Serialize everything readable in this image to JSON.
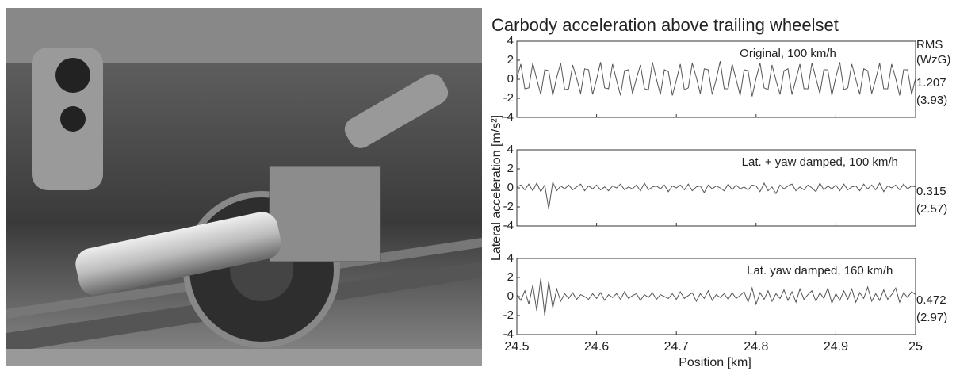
{
  "chart_data": {
    "type": "line",
    "title": "Carbody acceleration above trailing wheelset",
    "x_label": "Position [km]",
    "y_label": "Lateral acceleration [m/s²]",
    "rms_header": [
      "RMS",
      "(WzG)"
    ],
    "x": [
      24.5,
      24.505,
      24.51,
      24.515,
      24.52,
      24.525,
      24.53,
      24.535,
      24.54,
      24.545,
      24.55,
      24.555,
      24.56,
      24.565,
      24.57,
      24.575,
      24.58,
      24.585,
      24.59,
      24.595,
      24.6,
      24.605,
      24.61,
      24.615,
      24.62,
      24.625,
      24.63,
      24.635,
      24.64,
      24.645,
      24.65,
      24.655,
      24.66,
      24.665,
      24.67,
      24.675,
      24.68,
      24.685,
      24.69,
      24.695,
      24.7,
      24.705,
      24.71,
      24.715,
      24.72,
      24.725,
      24.73,
      24.735,
      24.74,
      24.745,
      24.75,
      24.755,
      24.76,
      24.765,
      24.77,
      24.775,
      24.78,
      24.785,
      24.79,
      24.795,
      24.8,
      24.805,
      24.81,
      24.815,
      24.82,
      24.825,
      24.83,
      24.835,
      24.84,
      24.845,
      24.85,
      24.855,
      24.86,
      24.865,
      24.87,
      24.875,
      24.88,
      24.885,
      24.89,
      24.895,
      24.9,
      24.905,
      24.91,
      24.915,
      24.92,
      24.925,
      24.93,
      24.935,
      24.94,
      24.945,
      24.95,
      24.955,
      24.96,
      24.965,
      24.97,
      24.975,
      24.98,
      24.985,
      24.99,
      24.995,
      25
    ],
    "xlim": [
      24.5,
      25
    ],
    "xticks": [
      24.5,
      24.6,
      24.7,
      24.8,
      24.9,
      25
    ],
    "ylim": [
      -4,
      4
    ],
    "yticks": [
      -4,
      -2,
      0,
      2,
      4
    ],
    "series": [
      {
        "name": "Original, 100 km/h",
        "color": "#555555",
        "rms_labels": [
          "1.207",
          "(3.93)"
        ],
        "values": [
          0.1,
          1.6,
          -1.0,
          -0.9,
          1.7,
          0.0,
          -1.6,
          1.0,
          0.9,
          -1.7,
          0.2,
          1.7,
          -1.1,
          -1.0,
          1.5,
          0.1,
          -1.5,
          1.1,
          1.0,
          -1.6,
          0.0,
          1.8,
          -0.9,
          -1.0,
          1.6,
          -0.1,
          -1.7,
          0.9,
          1.0,
          -1.5,
          0.1,
          1.5,
          -1.0,
          -1.1,
          1.8,
          0.0,
          -1.6,
          1.0,
          0.8,
          -1.7,
          -0.1,
          1.6,
          -1.1,
          -0.9,
          1.7,
          0.2,
          -1.5,
          1.1,
          1.0,
          -1.6,
          0.0,
          1.9,
          -1.0,
          -1.0,
          1.6,
          0.0,
          -1.7,
          1.0,
          0.9,
          -1.8,
          0.1,
          1.7,
          -0.9,
          -1.1,
          1.5,
          -0.1,
          -1.6,
          0.9,
          1.1,
          -1.6,
          0.0,
          1.6,
          -1.0,
          -1.0,
          1.7,
          0.1,
          -1.5,
          1.0,
          1.0,
          -1.7,
          0.2,
          1.8,
          -1.1,
          -0.9,
          1.6,
          0.0,
          -1.6,
          1.1,
          0.9,
          -1.5,
          0.0,
          1.7,
          -1.0,
          -1.0,
          1.6,
          0.1,
          -1.7,
          1.0,
          1.0,
          -1.6,
          0.1
        ]
      },
      {
        "name": "Lat. + yaw damped, 100 km/h",
        "color": "#555555",
        "rms_labels": [
          "0.315",
          "(2.57)"
        ],
        "values": [
          0.1,
          0.3,
          -0.2,
          0.4,
          -0.3,
          0.5,
          -0.4,
          0.3,
          -2.2,
          0.6,
          -0.3,
          0.2,
          -0.1,
          0.3,
          -0.2,
          0.1,
          0.4,
          -0.3,
          0.2,
          -0.1,
          0.3,
          -0.2,
          0.1,
          -0.3,
          0.2,
          0.0,
          0.4,
          -0.2,
          0.1,
          -0.1,
          0.3,
          -0.3,
          0.5,
          -0.2,
          0.1,
          0.2,
          -0.1,
          0.3,
          -0.4,
          0.2,
          0.0,
          0.3,
          -0.2,
          0.4,
          -0.3,
          0.1,
          0.2,
          -0.5,
          0.3,
          -0.1,
          0.2,
          0.0,
          -0.3,
          0.4,
          -0.2,
          0.3,
          -0.1,
          0.1,
          -0.2,
          0.3,
          0.2,
          -0.4,
          0.5,
          -0.3,
          0.1,
          -0.6,
          0.3,
          -0.1,
          0.2,
          0.4,
          -0.3,
          0.1,
          -0.2,
          0.3,
          0.0,
          -0.4,
          0.5,
          -0.2,
          0.2,
          -0.1,
          0.3,
          -0.3,
          0.4,
          -0.2,
          0.1,
          0.2,
          -0.3,
          0.4,
          -0.1,
          0.3,
          -0.2,
          0.5,
          -0.4,
          0.2,
          0.0,
          0.3,
          -0.2,
          0.4,
          -0.1,
          0.2,
          0.1
        ]
      },
      {
        "name": "Lat. yaw damped, 160 km/h",
        "color": "#555555",
        "rms_labels": [
          "0.472",
          "(2.97)"
        ],
        "values": [
          0.2,
          -0.4,
          0.6,
          -0.8,
          1.2,
          -1.5,
          1.9,
          -2.0,
          1.6,
          -1.2,
          0.8,
          -0.5,
          0.3,
          -0.2,
          0.4,
          -0.3,
          0.2,
          0.0,
          -0.3,
          0.3,
          -0.2,
          0.4,
          -0.4,
          0.2,
          -0.1,
          0.3,
          -0.3,
          0.5,
          -0.2,
          0.1,
          0.3,
          -0.4,
          0.2,
          -0.1,
          0.4,
          -0.3,
          0.2,
          0.0,
          -0.2,
          0.3,
          -0.3,
          0.5,
          -0.2,
          0.1,
          0.4,
          -0.5,
          0.3,
          -0.2,
          0.6,
          -0.4,
          0.2,
          -0.1,
          0.3,
          -0.3,
          0.4,
          -0.2,
          0.1,
          0.5,
          -0.6,
          0.9,
          -0.8,
          0.4,
          -0.3,
          0.6,
          -0.5,
          0.3,
          -0.2,
          0.7,
          -0.4,
          0.5,
          -0.6,
          0.8,
          -0.3,
          0.2,
          0.6,
          -0.5,
          0.4,
          -0.2,
          0.9,
          -0.7,
          0.3,
          -0.4,
          0.6,
          -0.3,
          0.8,
          -0.6,
          0.4,
          -0.2,
          1.0,
          -0.5,
          0.3,
          -0.4,
          0.7,
          -0.3,
          0.2,
          0.9,
          -0.6,
          0.4,
          -0.1,
          0.5,
          0.2
        ]
      }
    ]
  }
}
